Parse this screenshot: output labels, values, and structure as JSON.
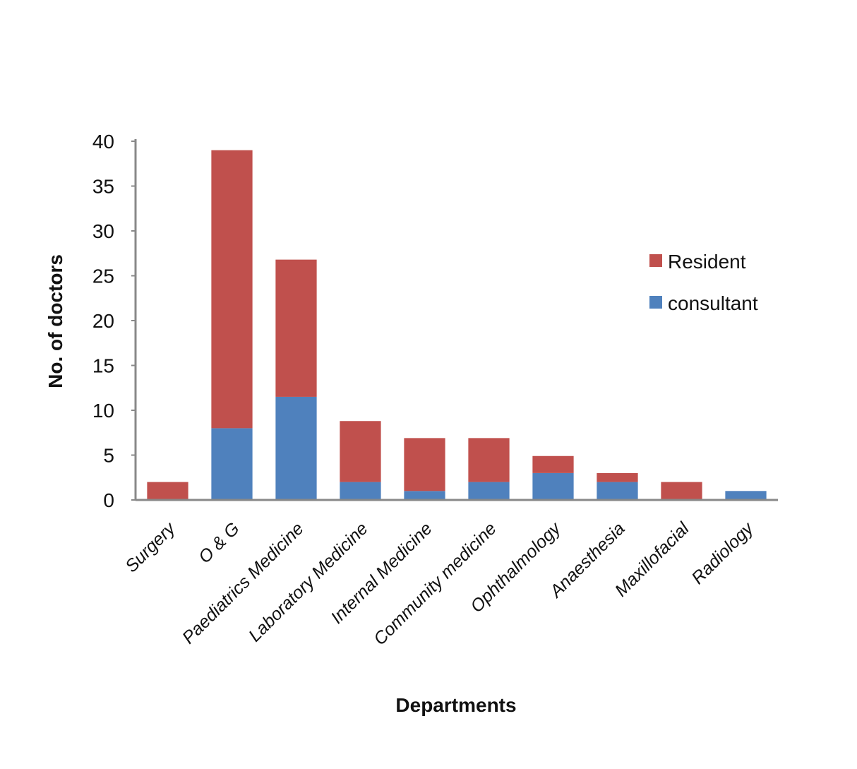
{
  "chart_data": {
    "type": "bar",
    "stacked": true,
    "categories": [
      "Surgery",
      "O & G",
      "Paediatrics Medicine",
      "Laboratory Medicine",
      "Internal Medicine",
      "Community medicine",
      "Ophthalmology",
      "Anaesthesia",
      "Maxillofacial",
      "Radiology"
    ],
    "series": [
      {
        "name": "consultant",
        "color": "#4F81BD",
        "values": [
          0,
          8,
          11.5,
          2,
          1,
          2,
          3,
          2,
          0,
          1
        ]
      },
      {
        "name": "Resident",
        "color": "#C0504D",
        "values": [
          2,
          31,
          15.3,
          6.8,
          5.9,
          4.9,
          1.9,
          1,
          2,
          0
        ]
      }
    ],
    "title": "",
    "xlabel": "Departments",
    "ylabel": "No. of doctors",
    "ylim": [
      0,
      40
    ],
    "yticks": [
      0,
      5,
      10,
      15,
      20,
      25,
      30,
      35,
      40
    ],
    "grid": false,
    "legend": {
      "position": "right",
      "order": [
        "Resident",
        "consultant"
      ]
    }
  }
}
